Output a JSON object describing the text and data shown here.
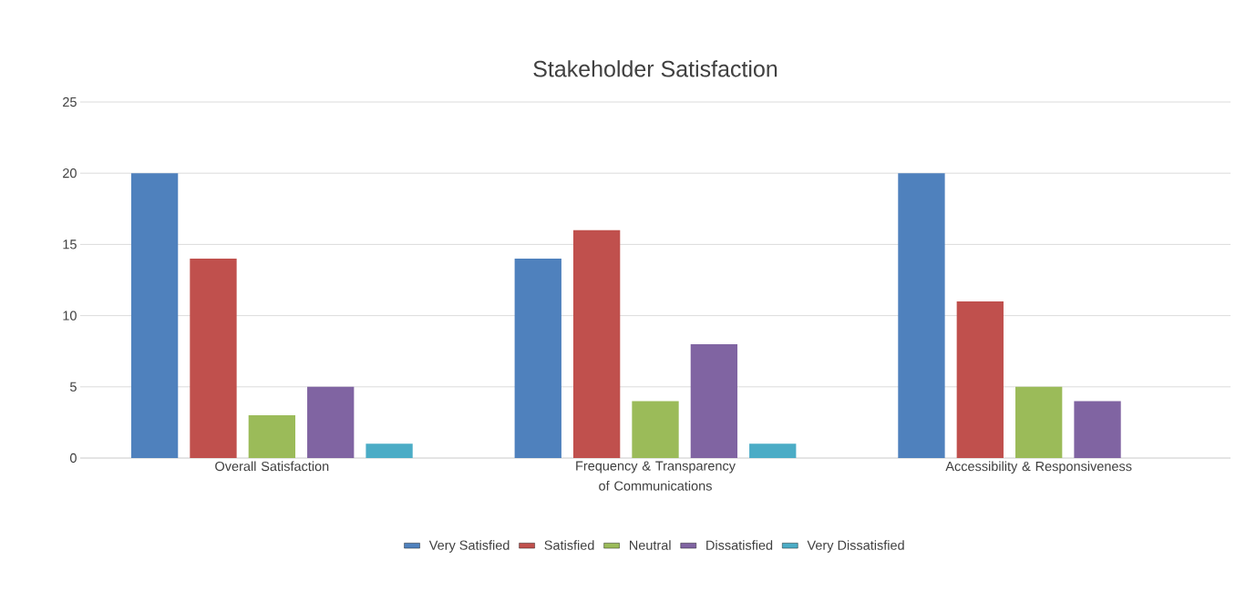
{
  "chart_data": {
    "type": "bar",
    "title": "Stakeholder Satisfaction",
    "categories": [
      "Overall Satisfaction",
      "Frequency & Transparency of Communications",
      "Accessibility & Responsiveness"
    ],
    "series": [
      {
        "name": "Very Satisfied",
        "color": "#4f81bd",
        "values": [
          20,
          14,
          20
        ]
      },
      {
        "name": "Satisfied",
        "color": "#c0504d",
        "values": [
          14,
          16,
          11
        ]
      },
      {
        "name": "Neutral",
        "color": "#9bbb59",
        "values": [
          3,
          4,
          5
        ]
      },
      {
        "name": "Dissatisfied",
        "color": "#8064a2",
        "values": [
          5,
          8,
          4
        ]
      },
      {
        "name": "Very Dissatisfied",
        "color": "#4bacc6",
        "values": [
          1,
          1,
          0
        ]
      }
    ],
    "ylim": [
      0,
      25
    ],
    "yticks": [
      0,
      5,
      10,
      15,
      20,
      25
    ],
    "grid": "y",
    "legend": "bottom"
  }
}
